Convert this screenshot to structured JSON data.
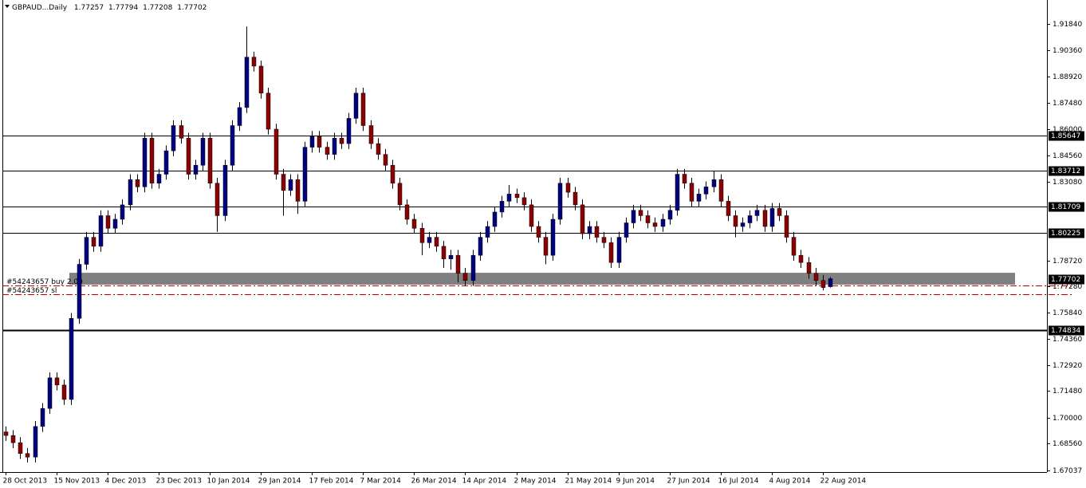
{
  "chart_data": {
    "type": "candlestick",
    "symbol": "GBPAUD...Daily",
    "categories": [
      "28 Oct 2013",
      null,
      null,
      null,
      null,
      null,
      null,
      "15 Nov 2013",
      null,
      null,
      null,
      null,
      null,
      null,
      "4 Dec 2013",
      null,
      null,
      null,
      null,
      null,
      null,
      "23 Dec 2013",
      null,
      null,
      null,
      null,
      null,
      null,
      "10 Jan 2014",
      null,
      null,
      null,
      null,
      null,
      null,
      "29 Jan 2014",
      null,
      null,
      null,
      null,
      null,
      null,
      "17 Feb 2014",
      null,
      null,
      null,
      null,
      null,
      null,
      "7 Mar 2014",
      null,
      null,
      null,
      null,
      null,
      null,
      "26 Mar 2014",
      null,
      null,
      null,
      null,
      null,
      null,
      "14 Apr 2014",
      null,
      null,
      null,
      null,
      null,
      null,
      "2 May 2014",
      null,
      null,
      null,
      null,
      null,
      null,
      "21 May 2014",
      null,
      null,
      null,
      null,
      null,
      null,
      "9 Jun 2014",
      null,
      null,
      null,
      null,
      null,
      null,
      "27 Jun 2014",
      null,
      null,
      null,
      null,
      null,
      null,
      "16 Jul 2014",
      null,
      null,
      null,
      null,
      null,
      null,
      "4 Aug 2014",
      null,
      null,
      null,
      null,
      null,
      null,
      "22 Aug 2014",
      null
    ],
    "open": [
      1.692,
      1.69,
      1.686,
      1.68,
      1.678,
      1.695,
      1.705,
      1.722,
      1.718,
      1.71,
      1.755,
      1.785,
      1.8,
      1.795,
      1.812,
      1.805,
      1.81,
      1.818,
      1.832,
      1.828,
      1.855,
      1.83,
      1.835,
      1.848,
      1.862,
      1.855,
      1.835,
      1.84,
      1.855,
      1.83,
      1.812,
      1.84,
      1.862,
      1.872,
      1.9,
      1.895,
      1.88,
      1.86,
      1.835,
      1.826,
      1.832,
      1.82,
      1.85,
      1.856,
      1.85,
      1.846,
      1.855,
      1.852,
      1.866,
      1.88,
      1.862,
      1.852,
      1.846,
      1.84,
      1.83,
      1.818,
      1.81,
      1.805,
      1.797,
      1.8,
      1.795,
      1.788,
      1.79,
      1.78,
      1.776,
      1.79,
      1.8,
      1.806,
      1.814,
      1.82,
      1.824,
      1.822,
      1.818,
      1.806,
      1.8,
      1.79,
      1.81,
      1.83,
      1.825,
      1.818,
      1.802,
      1.806,
      1.8,
      1.797,
      1.786,
      1.8,
      1.808,
      1.815,
      1.812,
      1.808,
      1.806,
      1.81,
      1.815,
      1.835,
      1.83,
      1.82,
      1.824,
      1.828,
      1.832,
      1.82,
      1.812,
      1.806,
      1.808,
      1.812,
      1.815,
      1.806,
      1.816,
      1.812,
      1.8,
      1.79,
      1.786,
      1.78,
      1.776,
      1.77257
    ],
    "high": [
      1.695,
      1.693,
      1.689,
      1.683,
      1.698,
      1.708,
      1.725,
      1.725,
      1.721,
      1.758,
      1.788,
      1.803,
      1.803,
      1.815,
      1.815,
      1.813,
      1.821,
      1.835,
      1.835,
      1.858,
      1.858,
      1.838,
      1.851,
      1.865,
      1.865,
      1.858,
      1.843,
      1.858,
      1.858,
      1.833,
      1.843,
      1.865,
      1.875,
      1.917,
      1.903,
      1.898,
      1.883,
      1.863,
      1.838,
      1.835,
      1.835,
      1.853,
      1.859,
      1.859,
      1.853,
      1.858,
      1.858,
      1.869,
      1.883,
      1.883,
      1.865,
      1.855,
      1.849,
      1.843,
      1.833,
      1.821,
      1.813,
      1.808,
      1.803,
      1.803,
      1.798,
      1.793,
      1.793,
      1.783,
      1.793,
      1.803,
      1.809,
      1.817,
      1.823,
      1.829,
      1.827,
      1.825,
      1.821,
      1.809,
      1.803,
      1.813,
      1.833,
      1.833,
      1.828,
      1.821,
      1.809,
      1.809,
      1.803,
      1.8,
      1.803,
      1.811,
      1.818,
      1.818,
      1.815,
      1.811,
      1.813,
      1.818,
      1.838,
      1.838,
      1.833,
      1.827,
      1.831,
      1.837,
      1.835,
      1.823,
      1.815,
      1.811,
      1.815,
      1.818,
      1.818,
      1.819,
      1.819,
      1.815,
      1.803,
      1.793,
      1.789,
      1.783,
      1.779,
      1.77794
    ],
    "low": [
      1.687,
      1.683,
      1.677,
      1.675,
      1.675,
      1.692,
      1.702,
      1.715,
      1.707,
      1.707,
      1.752,
      1.782,
      1.792,
      1.792,
      1.802,
      1.802,
      1.807,
      1.815,
      1.825,
      1.825,
      1.827,
      1.827,
      1.832,
      1.845,
      1.852,
      1.832,
      1.832,
      1.837,
      1.827,
      1.803,
      1.809,
      1.837,
      1.859,
      1.869,
      1.892,
      1.877,
      1.857,
      1.832,
      1.812,
      1.823,
      1.813,
      1.817,
      1.847,
      1.847,
      1.843,
      1.843,
      1.849,
      1.849,
      1.863,
      1.859,
      1.849,
      1.843,
      1.837,
      1.827,
      1.815,
      1.807,
      1.802,
      1.79,
      1.794,
      1.792,
      1.783,
      1.782,
      1.775,
      1.773,
      1.773,
      1.787,
      1.797,
      1.803,
      1.811,
      1.817,
      1.819,
      1.815,
      1.803,
      1.797,
      1.785,
      1.787,
      1.807,
      1.822,
      1.815,
      1.799,
      1.799,
      1.797,
      1.794,
      1.783,
      1.783,
      1.797,
      1.805,
      1.809,
      1.805,
      1.803,
      1.803,
      1.807,
      1.812,
      1.827,
      1.817,
      1.817,
      1.821,
      1.825,
      1.817,
      1.809,
      1.8,
      1.803,
      1.805,
      1.809,
      1.803,
      1.803,
      1.809,
      1.797,
      1.787,
      1.783,
      1.777,
      1.773,
      1.7705,
      1.77208
    ],
    "close": [
      1.69,
      1.686,
      1.68,
      1.678,
      1.695,
      1.705,
      1.722,
      1.718,
      1.71,
      1.755,
      1.785,
      1.8,
      1.795,
      1.812,
      1.805,
      1.81,
      1.818,
      1.832,
      1.828,
      1.855,
      1.83,
      1.835,
      1.848,
      1.862,
      1.855,
      1.835,
      1.84,
      1.855,
      1.83,
      1.812,
      1.84,
      1.862,
      1.872,
      1.9,
      1.895,
      1.88,
      1.86,
      1.835,
      1.826,
      1.832,
      1.82,
      1.85,
      1.856,
      1.85,
      1.846,
      1.855,
      1.852,
      1.866,
      1.88,
      1.862,
      1.852,
      1.846,
      1.84,
      1.83,
      1.818,
      1.81,
      1.805,
      1.797,
      1.8,
      1.795,
      1.788,
      1.79,
      1.78,
      1.776,
      1.79,
      1.8,
      1.806,
      1.814,
      1.82,
      1.824,
      1.822,
      1.818,
      1.806,
      1.8,
      1.79,
      1.81,
      1.83,
      1.825,
      1.818,
      1.802,
      1.806,
      1.8,
      1.797,
      1.786,
      1.8,
      1.808,
      1.815,
      1.812,
      1.808,
      1.806,
      1.81,
      1.815,
      1.835,
      1.83,
      1.82,
      1.824,
      1.828,
      1.832,
      1.82,
      1.812,
      1.806,
      1.808,
      1.812,
      1.815,
      1.806,
      1.816,
      1.812,
      1.8,
      1.79,
      1.786,
      1.78,
      1.776,
      1.7721,
      1.77702
    ],
    "up_color": "#000080",
    "down_color": "#8b0000",
    "ylim": [
      1.6697,
      1.9317
    ],
    "yticks": [
      {
        "value": 1.9184,
        "label": "1.91840"
      },
      {
        "value": 1.9036,
        "label": "1.90360"
      },
      {
        "value": 1.8892,
        "label": "1.88920"
      },
      {
        "value": 1.8748,
        "label": "1.87480"
      },
      {
        "value": 1.86,
        "label": "1.86000"
      },
      {
        "value": 1.8456,
        "label": "1.84560"
      },
      {
        "value": 1.8308,
        "label": "1.83080"
      },
      {
        "value": 1.7872,
        "label": "1.78720"
      },
      {
        "value": 1.7728,
        "label": "1.77280"
      },
      {
        "value": 1.7584,
        "label": "1.75840"
      },
      {
        "value": 1.7436,
        "label": "1.74360"
      },
      {
        "value": 1.7292,
        "label": "1.72920"
      },
      {
        "value": 1.7148,
        "label": "1.71480"
      },
      {
        "value": 1.7,
        "label": "1.70000"
      },
      {
        "value": 1.6856,
        "label": "1.68560"
      },
      {
        "value": 1.67037,
        "label": "1.67037"
      }
    ],
    "levels": [
      1.85647,
      1.83712,
      1.81709,
      1.80225,
      1.74834
    ],
    "zone": [
      1.7737,
      1.7803
    ],
    "orders": [
      {
        "label": "#54243657 buy 2.00",
        "value": 1.7732
      },
      {
        "label": "#54243657 sl",
        "value": 1.7684
      }
    ],
    "grid": false
  }
}
